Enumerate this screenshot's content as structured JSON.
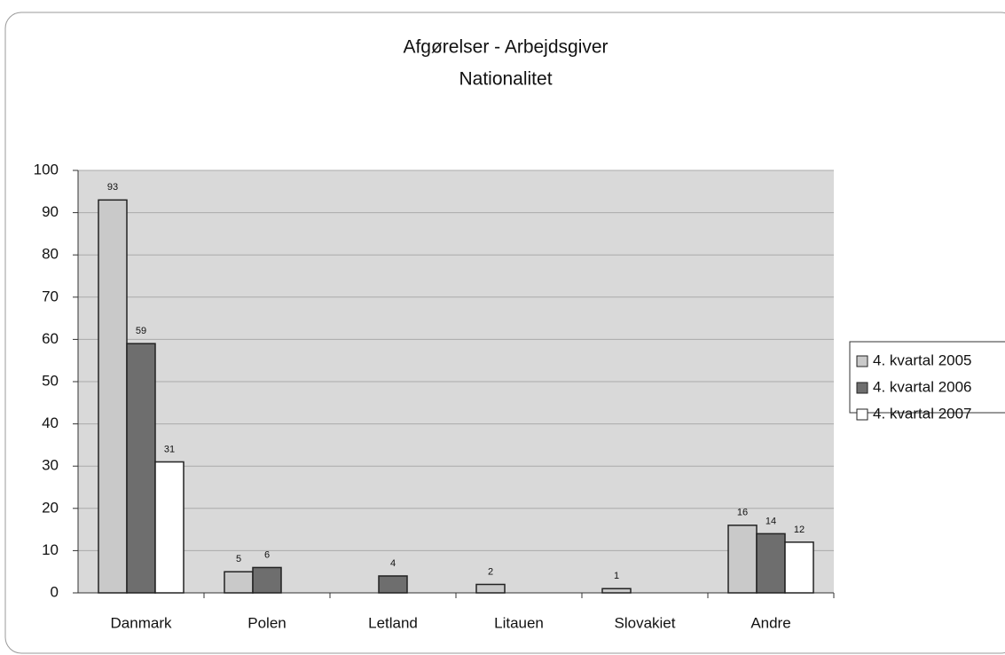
{
  "chart_data": {
    "type": "bar",
    "title": "Afgørelser - Arbejdsgiver",
    "subtitle": "Nationalitet",
    "categories": [
      "Danmark",
      "Polen",
      "Letland",
      "Litauen",
      "Slovakiet",
      "Andre"
    ],
    "series": [
      {
        "name": "4. kvartal 2005",
        "color": "#c9c9c9",
        "values": [
          93,
          5,
          null,
          2,
          1,
          16
        ]
      },
      {
        "name": "4. kvartal 2006",
        "color": "#6e6e6e",
        "values": [
          59,
          6,
          4,
          null,
          null,
          14
        ]
      },
      {
        "name": "4. kvartal 2007",
        "color": "#ffffff",
        "values": [
          31,
          null,
          null,
          null,
          null,
          12
        ]
      }
    ],
    "ylim": [
      0,
      100
    ],
    "yticks": [
      0,
      10,
      20,
      30,
      40,
      50,
      60,
      70,
      80,
      90,
      100
    ],
    "grid": true,
    "legend": "right"
  }
}
